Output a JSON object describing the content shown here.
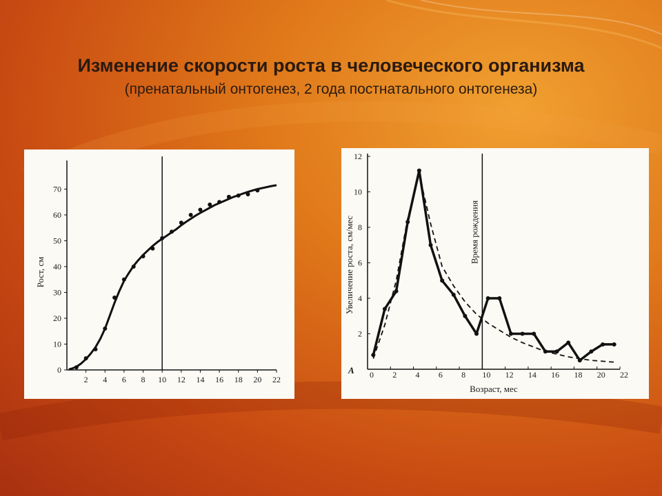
{
  "slide": {
    "title": "Изменение скорости роста в человеческого организма",
    "subtitle": "(пренатальный онтогенез, 2 года постнатального онтогенеза)"
  },
  "chart_data": [
    {
      "type": "line",
      "ylabel": "Рост, см",
      "xlabel": "",
      "xlim": [
        0,
        22
      ],
      "ylim": [
        0,
        72
      ],
      "x_ticks": [
        "2",
        "4",
        "6",
        "8",
        "10",
        "12",
        "14",
        "16",
        "18",
        "20",
        "22"
      ],
      "y_ticks": [
        "0",
        "10",
        "20",
        "30",
        "40",
        "50",
        "60",
        "70"
      ],
      "vertical_line_at": 10,
      "series": [
        {
          "x": [
            0.2,
            0.5,
            1,
            1.5,
            2,
            2.5,
            3,
            3.5,
            4,
            4.5,
            5,
            5.5,
            6,
            6.5,
            7,
            7.5,
            8,
            8.5,
            9,
            9.5,
            10,
            10.5,
            11,
            11.5,
            12,
            12.5,
            13,
            13.5,
            14,
            14.5,
            15,
            15.5,
            16,
            16.5,
            17,
            17.5,
            18,
            18.5,
            19,
            19.5,
            20,
            20.5,
            21,
            21.5,
            22
          ],
          "values": [
            0.2,
            0.5,
            1.2,
            2.5,
            4.2,
            6.3,
            8.8,
            12,
            16,
            21,
            26,
            30.5,
            34.5,
            37.5,
            40.3,
            42.5,
            44.5,
            46.3,
            48,
            49.5,
            50.8,
            52,
            53.3,
            54.5,
            56,
            57.3,
            58.5,
            59.7,
            60.8,
            61.8,
            62.8,
            63.8,
            64.6,
            65.4,
            66.2,
            67,
            67.6,
            68.3,
            68.9,
            69.5,
            70,
            70.4,
            70.8,
            71.2,
            71.5
          ]
        }
      ],
      "markers": {
        "x": [
          1,
          2,
          3,
          4,
          5,
          6,
          7,
          8,
          9,
          10,
          11,
          12,
          13,
          14,
          15,
          16,
          17,
          18,
          19,
          20
        ],
        "values": [
          1,
          4.5,
          8,
          16,
          28,
          35,
          40,
          44,
          47,
          51,
          53.5,
          57,
          60,
          62,
          64,
          65,
          67,
          67.5,
          68,
          69.5
        ]
      }
    },
    {
      "type": "line",
      "ylabel": "Увеличение роста, см/мес",
      "xlabel": "Возраст, мес",
      "panel_label": "А",
      "annotation": "Время рождения",
      "xlim": [
        0,
        22
      ],
      "ylim": [
        0,
        12
      ],
      "x_ticks": [
        "0",
        "2",
        "4",
        "6",
        "8",
        "10",
        "12",
        "14",
        "16",
        "18",
        "20",
        "22"
      ],
      "y_ticks": [
        "2",
        "4",
        "6",
        "8",
        "10",
        "12"
      ],
      "vertical_line_at": 10,
      "series": [
        {
          "style": "solid",
          "x": [
            0.5,
            1.5,
            2.5,
            3.5,
            4.5,
            5.5,
            6.5,
            7.5,
            8.5,
            9.5,
            10.5,
            11.5,
            12.5,
            13.5,
            14.5,
            15.5,
            16.5,
            17.5,
            18.5,
            19.5,
            20.5,
            21.5
          ],
          "values": [
            0.8,
            3.4,
            4.4,
            8.3,
            11.2,
            7.0,
            5.0,
            4.2,
            3.0,
            2.0,
            4.0,
            4.0,
            2.0,
            2.0,
            2.0,
            1.0,
            1.0,
            1.5,
            0.5,
            1.0,
            1.4,
            1.4
          ]
        },
        {
          "style": "dashed",
          "x": [
            0.5,
            1.5,
            2.5,
            3.5,
            4.5,
            5.5,
            6.5,
            7.5,
            8.5,
            9.5,
            10.5,
            11.5,
            12.5,
            13.5,
            14.5,
            15.5,
            16.5,
            17.5,
            18.5,
            19.5,
            20.5,
            21.5
          ],
          "values": [
            0.6,
            2.5,
            5.0,
            8.5,
            11.0,
            8.2,
            5.8,
            4.7,
            3.8,
            3.1,
            2.6,
            2.2,
            1.8,
            1.5,
            1.25,
            1.0,
            0.85,
            0.7,
            0.6,
            0.5,
            0.45,
            0.4
          ]
        }
      ]
    }
  ]
}
